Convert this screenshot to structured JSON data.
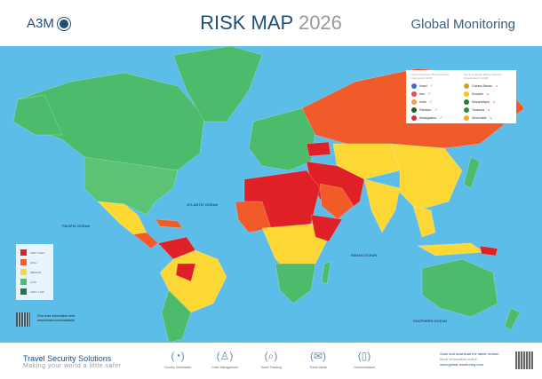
{
  "header": {
    "logo": "A3M",
    "title": "RISK MAP",
    "year": "2026",
    "brand": "Global Monitoring"
  },
  "colors": {
    "very_high": "#e02027",
    "high": "#f15a29",
    "medium": "#fdd835",
    "low": "#4cbb6c",
    "very_low": "#1f7a45",
    "ocean": "#5bbde8"
  },
  "legend": [
    {
      "label": "VERY HIGH",
      "color": "#e02027"
    },
    {
      "label": "HIGH",
      "color": "#f15a29"
    },
    {
      "label": "MEDIUM",
      "color": "#fdd835"
    },
    {
      "label": "LOW",
      "color": "#4cbb6c"
    },
    {
      "label": "VERY LOW",
      "color": "#1f7a45"
    }
  ],
  "info": {
    "line1": "Find more information here:",
    "line2": "www.krisavo.com/riskalarte"
  },
  "improved": {
    "heading": "Top 5 Countries Where Security Improved in 2025",
    "items": [
      "Israel",
      "Iran",
      "India",
      "Pakistan",
      "Madagascar"
    ]
  },
  "deteriorated": {
    "heading": "Top 5 Countries Where Security Deteriorated in 2025",
    "items": [
      "Guinea-Bissau",
      "Ecuador",
      "Mozambique",
      "Tanzania",
      "Venezuela"
    ]
  },
  "oceans": {
    "atlantic": "ATLANTIC OCEAN",
    "pacific": "PACIFIC OCEAN",
    "indian": "INDIAN OCEAN",
    "southern": "SOUTHERN OCEAN"
  },
  "footer": {
    "title": "Travel Security Solutions",
    "subtitle": "Making your world a little safer",
    "services": [
      {
        "label": "Country Information",
        "icon": "globe-doc-icon"
      },
      {
        "label": "Crisis Management",
        "icon": "person-icon"
      },
      {
        "label": "Travel Tracking",
        "icon": "map-search-icon"
      },
      {
        "label": "Travel Alerts",
        "icon": "alert-icon"
      },
      {
        "label": "Communication",
        "icon": "phone-icon"
      }
    ],
    "scan1": "Scan and download the latest version",
    "scan2": "More information online",
    "scan3": "www.global-monitoring.com"
  }
}
